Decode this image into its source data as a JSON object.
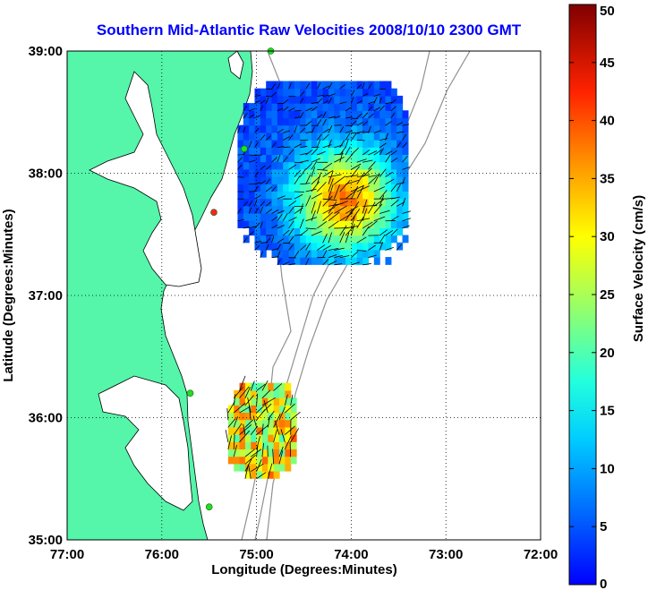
{
  "chart_data": {
    "type": "map",
    "title": "Southern Mid-Atlantic Raw Velocities 2008/10/10 2300 GMT",
    "xlabel": "Longitude (Degrees:Minutes)",
    "ylabel": "Latitude (Degrees:Minutes)",
    "x_ticks": [
      "77:00",
      "76:00",
      "75:00",
      "74:00",
      "73:00",
      "72:00"
    ],
    "y_ticks": [
      "39:00",
      "38:00",
      "37:00",
      "36:00",
      "35:00"
    ],
    "xlim": [
      -77,
      -72
    ],
    "ylim": [
      35,
      39
    ],
    "grid": true,
    "colorbar": {
      "label": "Surface Velocity (cm/s)",
      "ticks": [
        "0",
        "5",
        "10",
        "15",
        "20",
        "25",
        "30",
        "35",
        "40",
        "45",
        "50"
      ],
      "range": [
        0,
        50
      ],
      "colormap": "jet"
    },
    "colors": {
      "land": "#55f5aa",
      "coast": "#000000",
      "bathymetry": "#909090",
      "station": "#22dd22",
      "station_red": "#ff2222"
    },
    "stations": [
      {
        "lon": -74.85,
        "lat": 39.0,
        "color": "green"
      },
      {
        "lon": -75.13,
        "lat": 38.2,
        "color": "green"
      },
      {
        "lon": -75.45,
        "lat": 37.68,
        "color": "red"
      },
      {
        "lon": -75.7,
        "lat": 36.2,
        "color": "green"
      },
      {
        "lon": -75.5,
        "lat": 35.27,
        "color": "green"
      }
    ],
    "velocity_regions": [
      {
        "name": "north",
        "lon_range": [
          -75.2,
          -73.4
        ],
        "lat_range": [
          37.25,
          38.75
        ],
        "max_speed": 40
      },
      {
        "name": "south",
        "lon_range": [
          -75.3,
          -74.6
        ],
        "lat_range": [
          35.5,
          36.25
        ],
        "max_speed": 42
      }
    ]
  }
}
